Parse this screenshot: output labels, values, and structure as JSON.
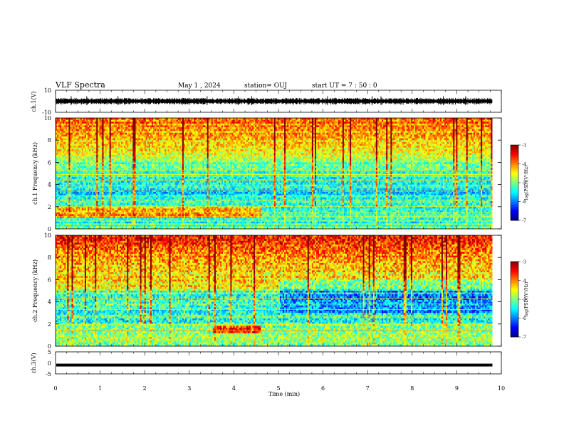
{
  "header": {
    "title": "VLF Spectra",
    "date": "May 1 , 2024",
    "station": "station= OUJ",
    "start": "start  UT =   7 : 50 : 0"
  },
  "chart_data": [
    {
      "type": "line",
      "name": "ch1-waveform",
      "ylabel": "ch.1(V)",
      "ylim": [
        -10,
        10
      ],
      "yticks": [
        "10",
        "-10"
      ],
      "xlim": [
        0,
        10
      ],
      "baseline": 0,
      "amplitude": 2,
      "spikes_min": [
        0.35,
        0.7,
        1.4,
        3.4,
        4.1,
        4.4,
        6.1,
        7.1,
        7.3,
        8.7,
        9.2
      ]
    },
    {
      "type": "heatmap",
      "name": "ch1-spectrogram",
      "ylabel": "ch.1 Frequency (kHz)",
      "ylim": [
        0,
        10
      ],
      "yticks": [
        "0",
        "2",
        "4",
        "6",
        "8",
        "10"
      ],
      "xlim": [
        0,
        10
      ],
      "data_end_min": 9.8,
      "colorbar": {
        "label": "log(PSD)(V²/Hz)",
        "range": [
          -7,
          -3
        ],
        "ticks": [
          "-3",
          "-4",
          "-5",
          "-6",
          "-7"
        ]
      }
    },
    {
      "type": "heatmap",
      "name": "ch2-spectrogram",
      "ylabel": "ch.2 Frequency (kHz)",
      "ylim": [
        0,
        10
      ],
      "yticks": [
        "0",
        "2",
        "4",
        "6",
        "8",
        "10"
      ],
      "xlim": [
        0,
        10
      ],
      "data_end_min": 9.8,
      "colorbar": {
        "label": "log(PSD)(V²/Hz)",
        "range": [
          -7,
          -3
        ],
        "ticks": [
          "-3",
          "-4",
          "-5",
          "-6",
          "-7"
        ]
      }
    },
    {
      "type": "line",
      "name": "ch3-waveform",
      "ylabel": "ch.3(V)",
      "ylim": [
        -5,
        5
      ],
      "yticks": [
        "5",
        "0",
        "-5"
      ],
      "xlim": [
        0,
        10
      ],
      "baseline": -1
    }
  ],
  "xaxis": {
    "label": "Time  (min)",
    "ticks": [
      "0",
      "1",
      "2",
      "3",
      "4",
      "5",
      "6",
      "7",
      "8",
      "9",
      "10"
    ]
  }
}
